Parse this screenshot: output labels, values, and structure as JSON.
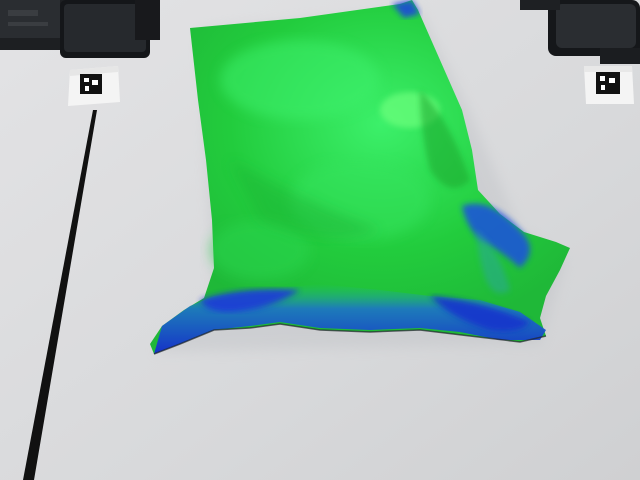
{
  "scene": {
    "objects": [
      "robot-base-left",
      "robot-base-right",
      "fiducial-marker-left",
      "fiducial-marker-right",
      "black-tape-line",
      "cloth-depth-overlay"
    ]
  },
  "colors": {
    "table": "#dcdcde",
    "table_shadow": "#cfd0d3",
    "robot_dark": "#1b1d20",
    "robot_mid": "#2c2f33",
    "marker_base": "#f3f3f3",
    "tape": "#111111",
    "cloth_green_bright": "#2fe35a",
    "cloth_green": "#21c83a",
    "cloth_blue": "#1d3fe0",
    "cloth_blue_dark": "#1530b8"
  }
}
